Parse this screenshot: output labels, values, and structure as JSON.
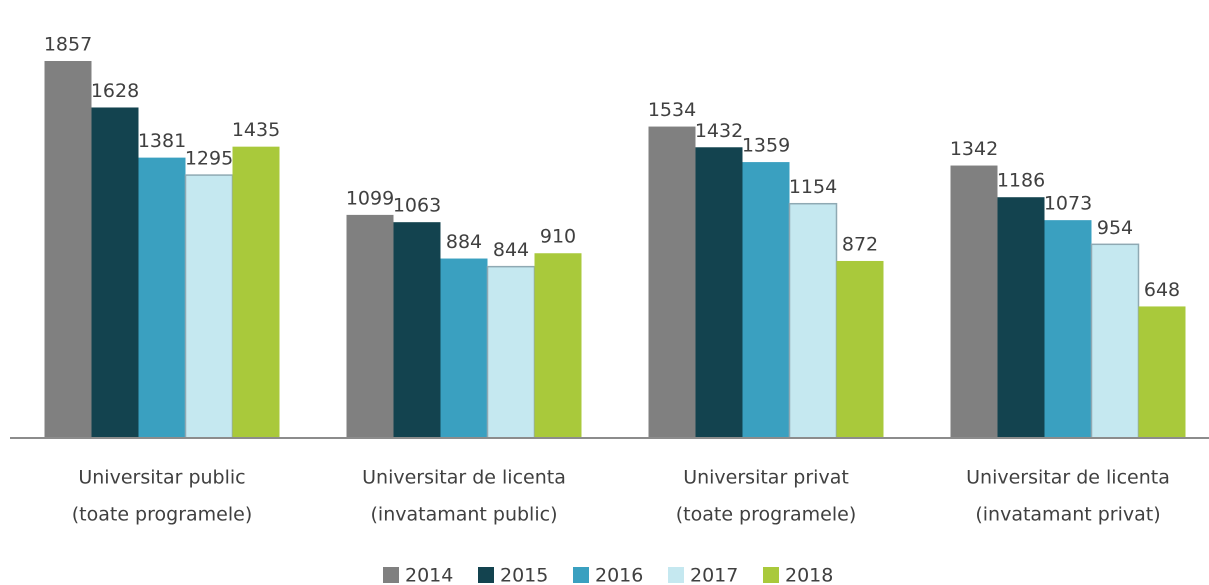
{
  "chart_data": {
    "type": "bar",
    "categories": [
      [
        "Universitar public",
        "(toate programele)"
      ],
      [
        "Universitar de licenta",
        "(invatamant public)"
      ],
      [
        "Universitar privat",
        "(toate programele)"
      ],
      [
        "Universitar de licenta",
        "(invatamant privat)"
      ]
    ],
    "series": [
      {
        "name": "2014",
        "color": "#808080",
        "values": [
          1857,
          1099,
          1534,
          1342
        ]
      },
      {
        "name": "2015",
        "color": "#13434f",
        "values": [
          1628,
          1063,
          1432,
          1186
        ]
      },
      {
        "name": "2016",
        "color": "#3aa0c0",
        "values": [
          1381,
          884,
          1359,
          1073
        ]
      },
      {
        "name": "2017",
        "color": "#c5e8f0",
        "values": [
          1295,
          844,
          1154,
          954
        ]
      },
      {
        "name": "2018",
        "color": "#a9c93b",
        "values": [
          1435,
          910,
          872,
          648
        ]
      }
    ],
    "ylim": [
      0,
      2150
    ],
    "legend": "bottom"
  }
}
